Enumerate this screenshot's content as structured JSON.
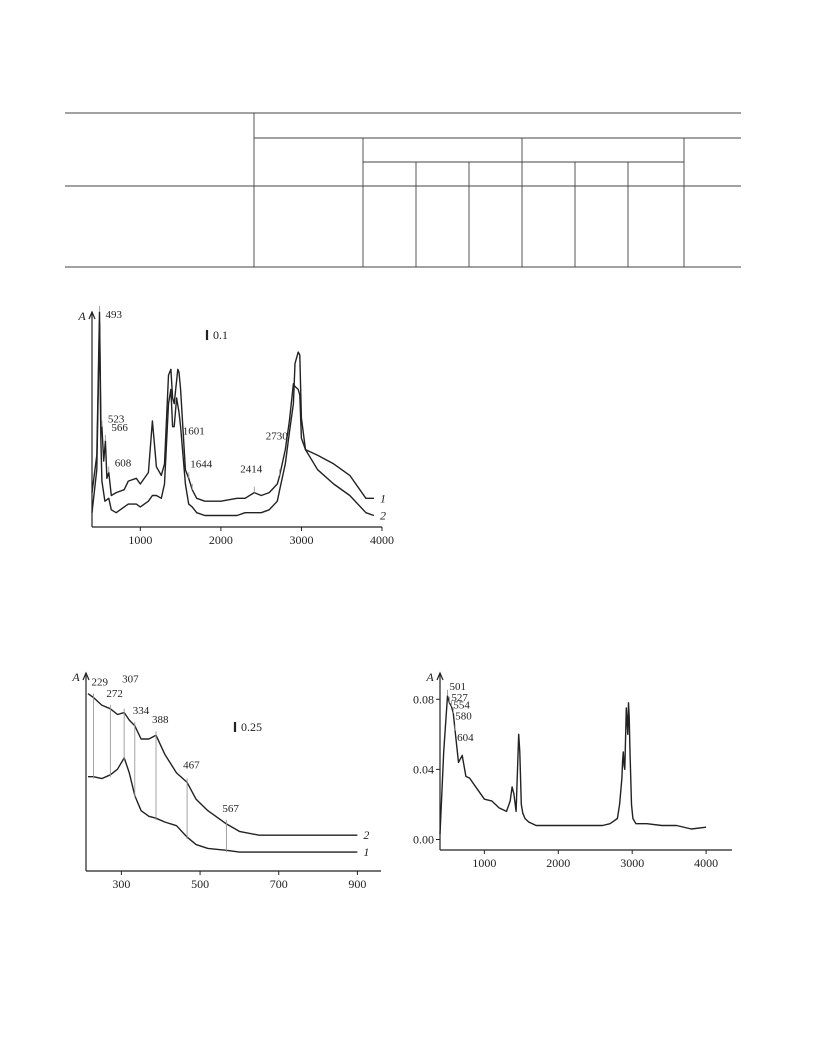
{
  "chart_data": [
    {
      "id": "ir",
      "type": "line",
      "ylabel": "A",
      "xlim": [
        400,
        4000
      ],
      "xticks": [
        1000,
        2000,
        3000,
        4000
      ],
      "scale_bar": "0.1",
      "grid": false,
      "series": [
        {
          "name": "1",
          "x": [
            400,
            460,
            493,
            510,
            523,
            545,
            566,
            585,
            608,
            640,
            700,
            800,
            850,
            950,
            1000,
            1100,
            1150,
            1200,
            1260,
            1300,
            1350,
            1380,
            1400,
            1420,
            1450,
            1465,
            1480,
            1500,
            1560,
            1601,
            1644,
            1700,
            1800,
            2000,
            2200,
            2300,
            2414,
            2500,
            2600,
            2700,
            2730,
            2800,
            2850,
            2900,
            2920,
            2960,
            2980,
            3000,
            3050,
            3200,
            3400,
            3600,
            3800,
            3900
          ],
          "y": [
            0.37,
            0.5,
            1.0,
            0.62,
            0.6,
            0.48,
            0.55,
            0.42,
            0.44,
            0.36,
            0.37,
            0.38,
            0.41,
            0.42,
            0.4,
            0.44,
            0.62,
            0.46,
            0.43,
            0.47,
            0.78,
            0.8,
            0.7,
            0.68,
            0.76,
            0.8,
            0.79,
            0.73,
            0.45,
            0.42,
            0.38,
            0.35,
            0.34,
            0.34,
            0.35,
            0.35,
            0.37,
            0.36,
            0.37,
            0.4,
            0.43,
            0.52,
            0.62,
            0.75,
            0.74,
            0.73,
            0.71,
            0.56,
            0.52,
            0.5,
            0.47,
            0.43,
            0.35,
            0.35
          ]
        },
        {
          "name": "2",
          "x": [
            400,
            460,
            493,
            510,
            523,
            560,
            608,
            640,
            700,
            800,
            850,
            950,
            1000,
            1100,
            1150,
            1200,
            1260,
            1300,
            1350,
            1380,
            1400,
            1420,
            1450,
            1480,
            1500,
            1560,
            1601,
            1644,
            1700,
            1800,
            2000,
            2200,
            2300,
            2414,
            2500,
            2600,
            2700,
            2730,
            2800,
            2850,
            2900,
            2920,
            2960,
            2980,
            3000,
            3050,
            3200,
            3400,
            3600,
            3800,
            3900
          ],
          "y": [
            0.3,
            0.45,
            0.96,
            0.55,
            0.41,
            0.34,
            0.35,
            0.31,
            0.3,
            0.32,
            0.33,
            0.33,
            0.32,
            0.34,
            0.36,
            0.36,
            0.35,
            0.4,
            0.68,
            0.73,
            0.6,
            0.6,
            0.7,
            0.65,
            0.6,
            0.4,
            0.33,
            0.32,
            0.3,
            0.29,
            0.29,
            0.29,
            0.3,
            0.3,
            0.3,
            0.31,
            0.34,
            0.38,
            0.47,
            0.58,
            0.68,
            0.82,
            0.86,
            0.85,
            0.63,
            0.52,
            0.45,
            0.4,
            0.36,
            0.3,
            0.29
          ]
        }
      ],
      "annotations": [
        "493",
        "523",
        "566",
        "608",
        "1601",
        "1644",
        "2414",
        "2730"
      ],
      "annotation_x": [
        493,
        523,
        566,
        608,
        1601,
        1644,
        2414,
        2730
      ]
    },
    {
      "id": "uv",
      "type": "line",
      "ylabel": "A",
      "xlim": [
        210,
        960
      ],
      "xticks": [
        300,
        500,
        700,
        900
      ],
      "scale_bar": "0.25",
      "grid": false,
      "series": [
        {
          "name": "2",
          "x": [
            215,
            229,
            250,
            272,
            290,
            307,
            320,
            334,
            350,
            370,
            388,
            410,
            440,
            467,
            490,
            520,
            567,
            600,
            650,
            700,
            800,
            900
          ],
          "y": [
            0.94,
            0.92,
            0.88,
            0.86,
            0.83,
            0.84,
            0.8,
            0.77,
            0.7,
            0.7,
            0.72,
            0.62,
            0.52,
            0.47,
            0.38,
            0.32,
            0.25,
            0.21,
            0.19,
            0.19,
            0.19,
            0.19
          ]
        },
        {
          "name": "1",
          "x": [
            215,
            229,
            250,
            272,
            290,
            307,
            320,
            334,
            350,
            370,
            388,
            410,
            440,
            467,
            490,
            520,
            567,
            600,
            650,
            700,
            800,
            900
          ],
          "y": [
            0.5,
            0.5,
            0.49,
            0.51,
            0.54,
            0.6,
            0.52,
            0.4,
            0.32,
            0.29,
            0.28,
            0.26,
            0.24,
            0.18,
            0.14,
            0.12,
            0.11,
            0.1,
            0.1,
            0.1,
            0.1,
            0.1
          ]
        }
      ],
      "annotations": [
        "229",
        "272",
        "307",
        "334",
        "388",
        "467",
        "567"
      ],
      "annotation_x": [
        229,
        272,
        307,
        334,
        388,
        467,
        567
      ]
    },
    {
      "id": "ir2",
      "type": "line",
      "ylabel": "A",
      "xlim": [
        400,
        4350
      ],
      "ylim": [
        -0.006,
        0.095
      ],
      "xticks": [
        1000,
        2000,
        3000,
        4000
      ],
      "yticks": [
        0.0,
        0.04,
        0.08
      ],
      "ytick_labels": [
        "0.00",
        "0.04",
        "0.08"
      ],
      "grid": false,
      "series": [
        {
          "name": "",
          "x": [
            400,
            450,
            501,
            527,
            554,
            580,
            604,
            650,
            700,
            750,
            800,
            900,
            1000,
            1100,
            1200,
            1300,
            1350,
            1375,
            1400,
            1430,
            1465,
            1480,
            1500,
            1520,
            1550,
            1600,
            1700,
            1800,
            2000,
            2200,
            2400,
            2600,
            2700,
            2800,
            2830,
            2860,
            2870,
            2880,
            2890,
            2900,
            2920,
            2940,
            2950,
            2960,
            2970,
            2990,
            3010,
            3050,
            3200,
            3400,
            3600,
            3800,
            4000
          ],
          "y": [
            0.003,
            0.05,
            0.082,
            0.078,
            0.076,
            0.072,
            0.062,
            0.044,
            0.048,
            0.036,
            0.035,
            0.029,
            0.023,
            0.022,
            0.018,
            0.016,
            0.022,
            0.03,
            0.026,
            0.016,
            0.06,
            0.05,
            0.02,
            0.015,
            0.012,
            0.01,
            0.008,
            0.008,
            0.008,
            0.008,
            0.008,
            0.008,
            0.009,
            0.012,
            0.02,
            0.035,
            0.045,
            0.05,
            0.042,
            0.04,
            0.075,
            0.06,
            0.078,
            0.07,
            0.05,
            0.02,
            0.012,
            0.009,
            0.009,
            0.008,
            0.008,
            0.006,
            0.007
          ]
        }
      ],
      "annotations": [
        "501",
        "527",
        "554",
        "580",
        "604"
      ],
      "annotation_x": [
        501,
        527,
        554,
        580,
        604
      ]
    }
  ]
}
